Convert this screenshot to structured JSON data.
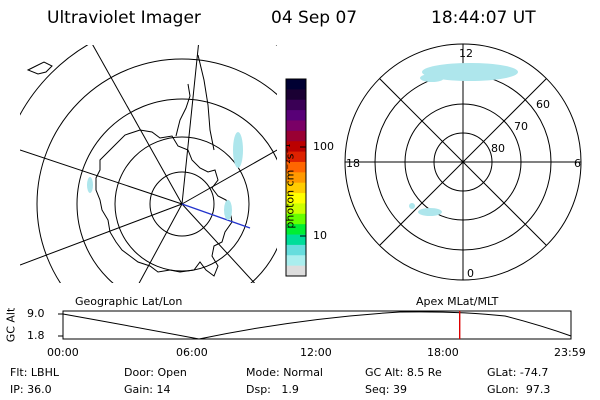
{
  "header": {
    "title": "Ultraviolet Imager",
    "date": "04 Sep 07",
    "time": "18:44:07 UT"
  },
  "colorbar": {
    "unit_label": "photon cm⁻²s⁻¹",
    "ticks": [
      "100",
      "10"
    ],
    "colors": [
      "#000033",
      "#1a0033",
      "#3a0055",
      "#580077",
      "#7a0066",
      "#990033",
      "#bb0000",
      "#dd2200",
      "#ff6600",
      "#ff9900",
      "#ffcc00",
      "#ffff00",
      "#ccff00",
      "#66ff00",
      "#00ee33",
      "#00dd99",
      "#66dddd",
      "#aaeeee",
      "#dddddd"
    ]
  },
  "right_map": {
    "mlt_labels": {
      "top": "12",
      "bottom": "0",
      "left": "18",
      "right": "6"
    },
    "lat_labels": [
      "60",
      "70",
      "80"
    ]
  },
  "timeline": {
    "left_label": "Geographic Lat/Lon",
    "right_label": "Apex  MLat/MLT",
    "y_axis_label": "GC Alt",
    "y_ticks": [
      "9.0",
      "1.8"
    ],
    "x_ticks": [
      "00:00",
      "06:00",
      "12:00",
      "18:00",
      "23:59"
    ],
    "current_time_fraction": 0.781
  },
  "status": {
    "filter_label": "Flt:",
    "filter_value": "LBHL",
    "ip_label": "IP:",
    "ip_value": "36.0",
    "door_label": "Door:",
    "door_value": "Open",
    "gain_label": "Gain:",
    "gain_value": "14",
    "mode_label": "Mode:",
    "mode_value": "Normal",
    "dsp_label": "Dsp:",
    "dsp_value": "1.9",
    "gcalt_label": "GC Alt:",
    "gcalt_value": "8.5 Re",
    "seq_label": "Seq:",
    "seq_value": "39",
    "glat_label": "GLat:",
    "glat_value": "-74.7",
    "glon_label": "GLon:",
    "glon_value": "97.3"
  }
}
